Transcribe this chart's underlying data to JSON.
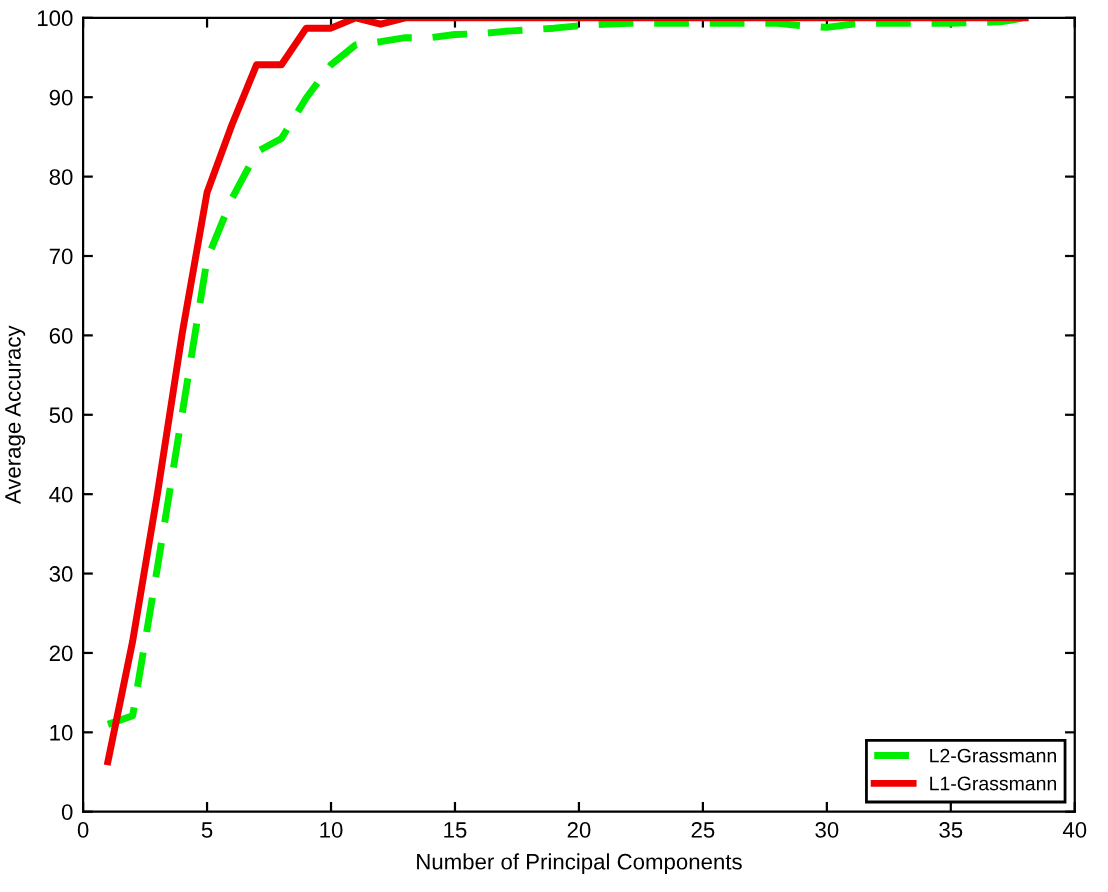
{
  "chart_data": {
    "type": "line",
    "xlabel": "Number of Principal Components",
    "ylabel": "Average Accuracy",
    "x": [
      1,
      2,
      3,
      4,
      5,
      6,
      7,
      8,
      9,
      10,
      11,
      12,
      13,
      14,
      15,
      16,
      17,
      18,
      19,
      20,
      21,
      22,
      23,
      24,
      25,
      26,
      27,
      28,
      29,
      30,
      31,
      32,
      33,
      34,
      35,
      36,
      37,
      38
    ],
    "series": [
      {
        "name": "L2-Grassmann",
        "color": "#00ee00",
        "line_style": "dashed",
        "values": [
          11,
          12.1,
          30.8,
          50.2,
          69.6,
          77.2,
          83.1,
          84.8,
          89.9,
          94.1,
          96.6,
          97,
          97.5,
          97.5,
          97.9,
          98,
          98.3,
          98.5,
          98.7,
          99,
          99.2,
          99.3,
          99.3,
          99.3,
          99.3,
          99.3,
          99.3,
          99.3,
          99,
          98.8,
          99.2,
          99.3,
          99.3,
          99.3,
          99.3,
          99.4,
          99.5,
          100
        ]
      },
      {
        "name": "L1-Grassmann",
        "color": "#ee0000",
        "line_style": "solid",
        "values": [
          6.3,
          21.5,
          40.1,
          60.3,
          78,
          86.5,
          94.1,
          94.1,
          98.7,
          98.7,
          100,
          99.2,
          100,
          100,
          100,
          100,
          100,
          100,
          100,
          100,
          100,
          100,
          100,
          100,
          100,
          100,
          100,
          100,
          100,
          100,
          100,
          100,
          100,
          100,
          100,
          100,
          100,
          100
        ]
      }
    ],
    "xlim": [
      0,
      40
    ],
    "xticks": [
      0,
      5,
      10,
      15,
      20,
      25,
      30,
      35,
      40
    ],
    "ylim": [
      0,
      100
    ],
    "yticks": [
      0,
      10,
      20,
      30,
      40,
      50,
      60,
      70,
      80,
      90,
      100
    ],
    "grid": false,
    "legend": "bottom right",
    "marker": "none"
  }
}
